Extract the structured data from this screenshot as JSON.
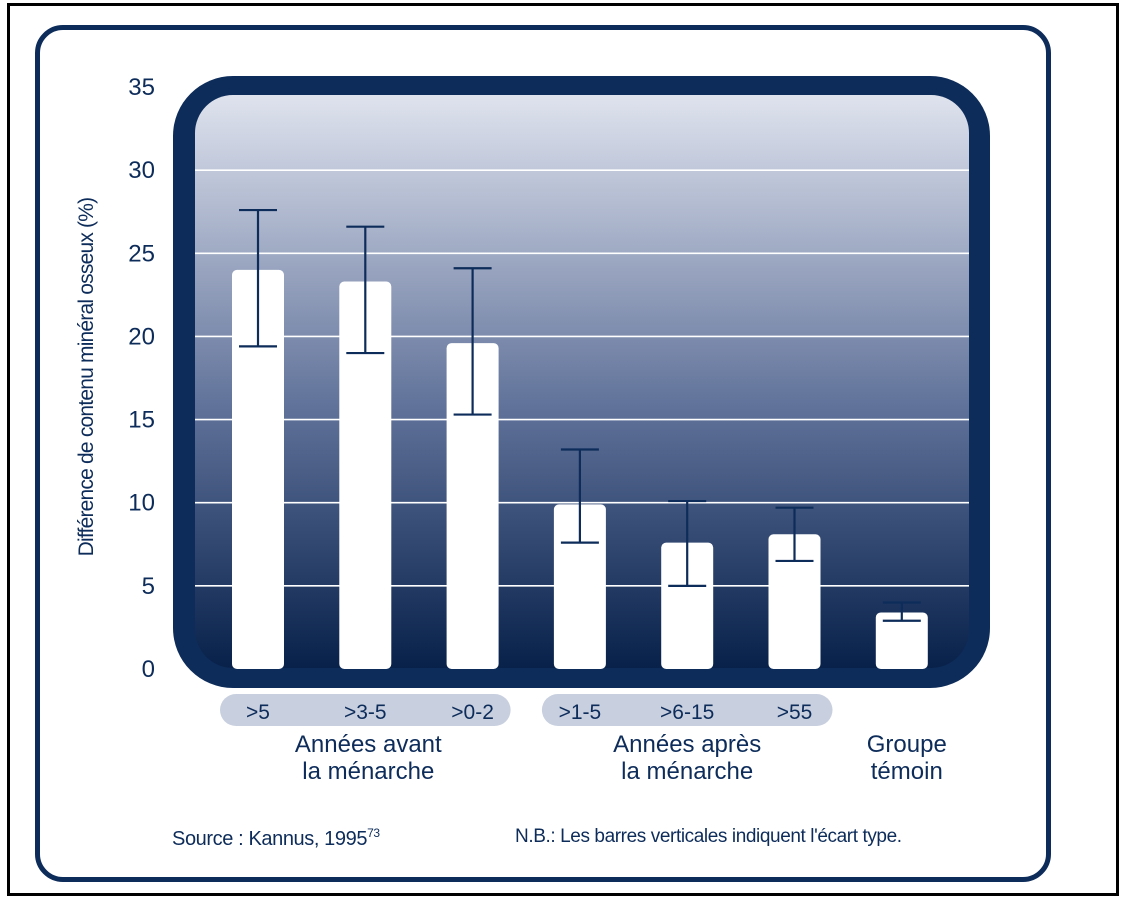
{
  "chart_data": {
    "type": "bar",
    "ylabel": "Différence de contenu minéral osseux (%)",
    "ylim": [
      0,
      35
    ],
    "yticks": [
      "0",
      "5",
      "10",
      "15",
      "20",
      "25",
      "30",
      "35"
    ],
    "grid": true,
    "categories": [
      ">5",
      ">3-5",
      ">0-2",
      ">1-5",
      ">6-15",
      ">55",
      ""
    ],
    "values": [
      24.0,
      23.3,
      19.6,
      9.9,
      7.6,
      8.1,
      3.4
    ],
    "error_bars": [
      [
        19.4,
        27.6
      ],
      [
        19.0,
        26.6
      ],
      [
        15.3,
        24.1
      ],
      [
        7.6,
        13.2
      ],
      [
        5.0,
        10.1
      ],
      [
        6.5,
        9.7
      ],
      [
        2.9,
        4.0
      ]
    ],
    "groups": [
      {
        "line1": "Années avant",
        "line2": "la ménarche",
        "categories": [
          ">5",
          ">3-5",
          ">0-2"
        ]
      },
      {
        "line1": "Années après",
        "line2": "la ménarche",
        "categories": [
          ">1-5",
          ">6-15",
          ">55"
        ]
      },
      {
        "line1": "Groupe",
        "line2": "témoin",
        "categories": []
      }
    ]
  },
  "footer": {
    "source": "Source : Kannus, 1995",
    "source_ref": "73",
    "note": "N.B.: Les barres verticales indiquent l'écart type."
  },
  "colors": {
    "frame": "#0d2c5a",
    "panel_top": "#dfe3ee",
    "panel_bottom": "#07214a",
    "pill": "#c8cfdf",
    "text": "#0d2c5a",
    "bar": "#ffffff",
    "whisker": "#0d2c5a"
  }
}
